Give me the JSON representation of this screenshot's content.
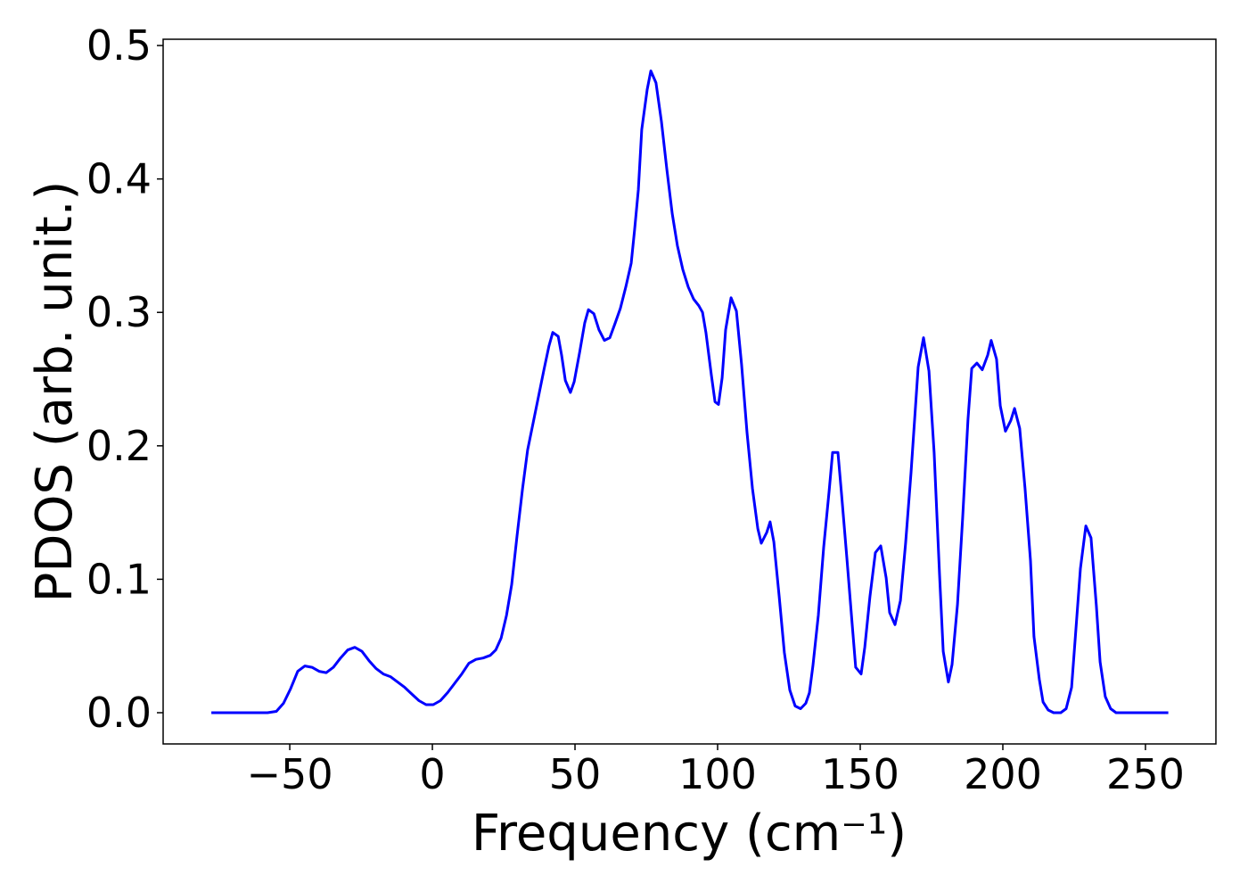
{
  "chart_data": {
    "type": "line",
    "x_label": "Frequency (cm⁻¹)",
    "y_label": "PDOS (arb. unit.)",
    "xlim": [
      -94.4,
      274.7
    ],
    "ylim": [
      -0.0234,
      0.5047
    ],
    "xticks": [
      {
        "value": -50,
        "label": "−50"
      },
      0,
      50,
      100,
      150,
      200,
      250
    ],
    "yticks": [
      {
        "value": 0,
        "label": "0.0"
      },
      0.1,
      0.2,
      0.3,
      0.4,
      0.5
    ],
    "grid": false,
    "series": [
      {
        "color": "#0000ff",
        "x": [
          -77.5,
          -57.8,
          -54.7,
          -52.2,
          -49.7,
          -47.2,
          -44.7,
          -42.2,
          -39.7,
          -37.2,
          -34.7,
          -32.2,
          -29.7,
          -27.2,
          -24.7,
          -22.2,
          -19.7,
          -17.2,
          -14.7,
          -12.2,
          -9.7,
          -7.2,
          -4.7,
          -2.2,
          0.3,
          2.8,
          5.3,
          7.8,
          10.3,
          12.8,
          15.3,
          17.8,
          20.3,
          22.2,
          24.1,
          26.0,
          27.8,
          29.7,
          31.6,
          33.4,
          35.3,
          37.2,
          39.1,
          40.9,
          42.2,
          44.1,
          45.3,
          46.6,
          48.4,
          49.7,
          51.6,
          53.4,
          54.7,
          56.6,
          58.4,
          60.3,
          62.2,
          64.1,
          65.9,
          67.8,
          69.7,
          70.9,
          72.2,
          73.4,
          75.3,
          76.6,
          78.4,
          80.3,
          82.2,
          84.1,
          85.9,
          87.8,
          89.7,
          91.6,
          93.4,
          94.7,
          95.9,
          97.8,
          99.1,
          100.3,
          101.6,
          102.8,
          104.7,
          106.6,
          108.4,
          110.3,
          112.2,
          114.1,
          115.3,
          117.2,
          118.4,
          119.7,
          121.6,
          123.4,
          125.3,
          127.2,
          129.1,
          130.9,
          132.2,
          133.4,
          135.3,
          137.2,
          139.1,
          140.3,
          142.2,
          143.4,
          145.3,
          147.2,
          148.4,
          150.3,
          151.6,
          153.4,
          155.3,
          157.2,
          159.1,
          160.3,
          162.2,
          164.1,
          165.9,
          167.8,
          170.3,
          172.2,
          174.1,
          175.9,
          177.8,
          179.1,
          180.9,
          182.2,
          184.1,
          185.9,
          187.8,
          189.1,
          190.9,
          192.8,
          194.7,
          195.9,
          197.8,
          199.1,
          200.9,
          202.8,
          204.1,
          205.9,
          207.8,
          209.7,
          210.9,
          212.8,
          214.1,
          215.9,
          217.8,
          220.3,
          222.2,
          224.1,
          225.3,
          227.2,
          229.1,
          230.9,
          232.8,
          234.1,
          235.9,
          237.8,
          239.7,
          258
        ],
        "values": [
          0,
          0,
          0.001,
          0.007,
          0.018,
          0.031,
          0.035,
          0.034,
          0.031,
          0.03,
          0.034,
          0.041,
          0.047,
          0.049,
          0.046,
          0.039,
          0.033,
          0.029,
          0.027,
          0.023,
          0.019,
          0.014,
          0.009,
          0.006,
          0.006,
          0.009,
          0.015,
          0.022,
          0.029,
          0.037,
          0.04,
          0.041,
          0.043,
          0.047,
          0.056,
          0.073,
          0.096,
          0.133,
          0.168,
          0.197,
          0.217,
          0.237,
          0.257,
          0.275,
          0.285,
          0.282,
          0.268,
          0.249,
          0.24,
          0.248,
          0.27,
          0.292,
          0.302,
          0.299,
          0.287,
          0.279,
          0.281,
          0.292,
          0.303,
          0.319,
          0.337,
          0.362,
          0.392,
          0.437,
          0.467,
          0.481,
          0.472,
          0.443,
          0.407,
          0.374,
          0.35,
          0.332,
          0.319,
          0.31,
          0.305,
          0.3,
          0.285,
          0.253,
          0.233,
          0.231,
          0.251,
          0.287,
          0.311,
          0.301,
          0.261,
          0.21,
          0.168,
          0.138,
          0.127,
          0.135,
          0.143,
          0.128,
          0.087,
          0.045,
          0.017,
          0.005,
          0.003,
          0.007,
          0.015,
          0.035,
          0.073,
          0.124,
          0.166,
          0.195,
          0.195,
          0.165,
          0.116,
          0.066,
          0.034,
          0.029,
          0.049,
          0.087,
          0.12,
          0.125,
          0.101,
          0.075,
          0.066,
          0.084,
          0.127,
          0.18,
          0.259,
          0.281,
          0.256,
          0.195,
          0.103,
          0.046,
          0.023,
          0.036,
          0.081,
          0.146,
          0.22,
          0.258,
          0.262,
          0.257,
          0.268,
          0.279,
          0.265,
          0.23,
          0.211,
          0.219,
          0.228,
          0.213,
          0.168,
          0.114,
          0.057,
          0.025,
          0.008,
          0.002,
          0,
          0,
          0.003,
          0.019,
          0.053,
          0.108,
          0.14,
          0.131,
          0.08,
          0.038,
          0.012,
          0.003,
          0,
          0
        ]
      }
    ]
  }
}
